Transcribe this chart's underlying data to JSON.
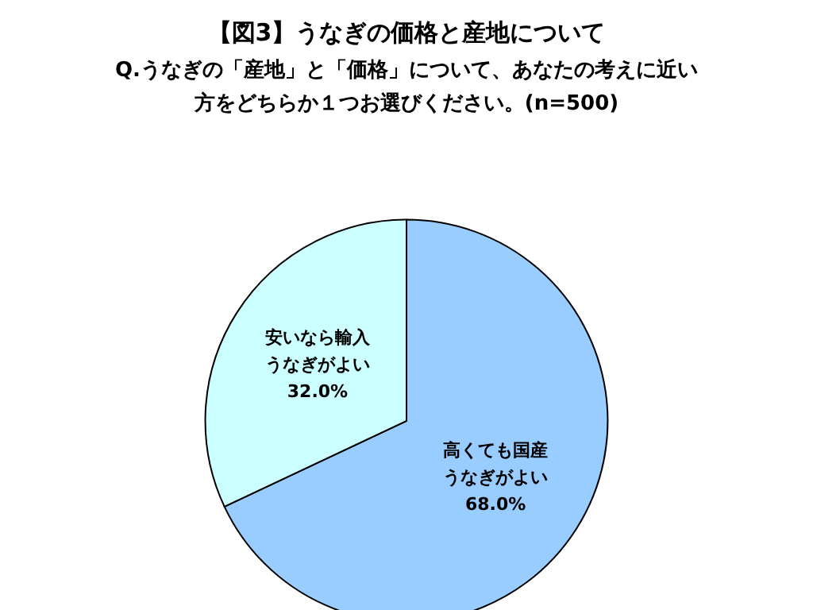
{
  "chart_data": {
    "type": "pie",
    "title": "【図3】うなぎの価格と産地について",
    "subtitle": "Q.うなぎの「産地」と「価格」について、あなたの考えに近い方をどちらか１つお選びください。(n=500)",
    "categories": [
      "高くても国産うなぎがよい",
      "安いなら輸入うなぎがよい"
    ],
    "values": [
      68.0,
      32.0
    ],
    "value_labels": [
      "68.0%",
      "32.0%"
    ],
    "colors": [
      "#99ccff",
      "#ccffff"
    ],
    "legend": false
  }
}
